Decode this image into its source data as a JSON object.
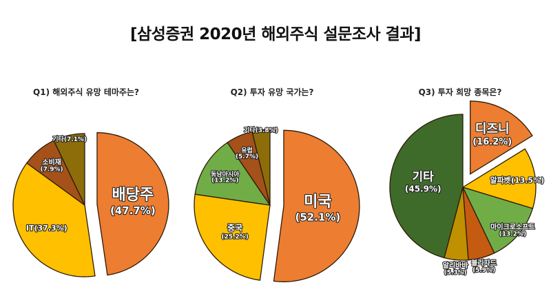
{
  "title": "[삼성증권 2020년 해외주식 설문조사 결과]",
  "chart_data": [
    {
      "type": "pie",
      "title": "Q1) 해외주식 유망 테마주는?",
      "categories": [
        "배당주",
        "IT",
        "소비재",
        "기타"
      ],
      "values": [
        47.7,
        37.3,
        7.9,
        7.1
      ],
      "labels": [
        "배당주\n(47.7%)",
        "IT(37.3%)",
        "소비재\n(7.9%)",
        "기타(7.1%)"
      ],
      "colors": [
        "#ED7D31",
        "#FFC000",
        "#A5511A",
        "#8C6D0A"
      ],
      "exploded": [
        "배당주"
      ]
    },
    {
      "type": "pie",
      "title": "Q2) 투자 유망 국가는?",
      "categories": [
        "미국",
        "중국",
        "동남아시아",
        "유럽",
        "기타"
      ],
      "values": [
        52.1,
        25.2,
        13.2,
        5.7,
        3.8
      ],
      "labels": [
        "미국\n(52.1%)",
        "중국\n(25.2%)",
        "동남아시아\n(13.2%)",
        "유럽\n(5.7%)",
        "기타(3.8%)"
      ],
      "colors": [
        "#ED7D31",
        "#FFC000",
        "#70AD47",
        "#A5511A",
        "#8C6D0A"
      ],
      "exploded": [
        "미국"
      ]
    },
    {
      "type": "pie",
      "title": "Q3) 투자 희망 종목은?",
      "categories": [
        "디즈니",
        "알파벳",
        "마이크로소프트",
        "블리자드",
        "알리바바",
        "기타"
      ],
      "values": [
        16.2,
        13.5,
        13.2,
        5.9,
        5.3,
        45.9
      ],
      "labels": [
        "디즈니\n(16.2%)",
        "알파벳(13.5%)",
        "마이크로소프트\n(13.2%)",
        "블리자드\n(5.9%)",
        "알리바바\n(5.3%)",
        "기타\n(45.9%)"
      ],
      "colors": [
        "#ED7D31",
        "#FFC000",
        "#70AD47",
        "#C55A11",
        "#BF9000",
        "#3F6B2A"
      ],
      "exploded": [
        "디즈니"
      ]
    }
  ]
}
